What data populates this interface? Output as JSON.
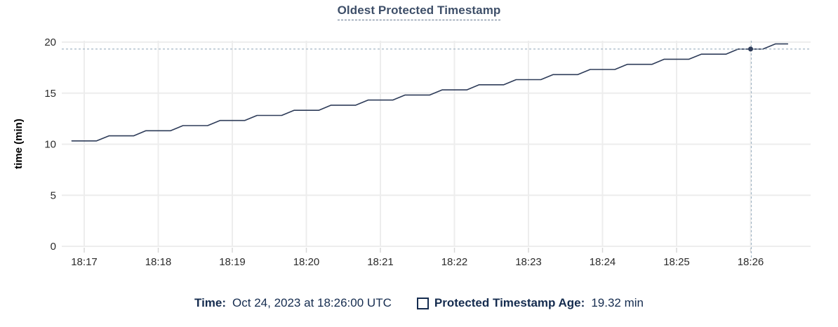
{
  "title": "Oldest Protected Timestamp",
  "footer": {
    "time_label": "Time:",
    "time_value": "Oct 24, 2023 at 18:26:00 UTC",
    "series_label": "Protected Timestamp Age:",
    "series_value": "19.32 min"
  },
  "colors": {
    "line": "#2e3c59",
    "dot": "#2e3c59",
    "grid": "#ededed",
    "tick_mark": "#d8d8d8",
    "crosshair": "#a4b7c6",
    "axis_text": "#2b2b2b",
    "y_axis_title_text": "#000000",
    "title_text": "#3e4f69",
    "footer_text": "#152c4f"
  },
  "chart_data": {
    "type": "line",
    "title": "Oldest Protected Timestamp",
    "xlabel": "",
    "ylabel": "time (min)",
    "ylim": [
      0,
      20
    ],
    "y_ticks": [
      0,
      5,
      10,
      15,
      20
    ],
    "x_ticks": [
      {
        "t": 0,
        "label": "18:17"
      },
      {
        "t": 60,
        "label": "18:18"
      },
      {
        "t": 120,
        "label": "18:19"
      },
      {
        "t": 180,
        "label": "18:20"
      },
      {
        "t": 240,
        "label": "18:21"
      },
      {
        "t": 300,
        "label": "18:22"
      },
      {
        "t": 360,
        "label": "18:23"
      },
      {
        "t": 420,
        "label": "18:24"
      },
      {
        "t": 480,
        "label": "18:25"
      },
      {
        "t": 540,
        "label": "18:26"
      }
    ],
    "x_unit": "seconds since 18:17:00 UTC",
    "grid": true,
    "legend_position": "bottom",
    "series": [
      {
        "name": "Protected Timestamp Age",
        "x_start_seconds": -10,
        "x_step_seconds": 10,
        "values": [
          10.32,
          10.32,
          10.32,
          10.82,
          10.82,
          10.82,
          11.32,
          11.32,
          11.32,
          11.82,
          11.82,
          11.82,
          12.32,
          12.32,
          12.32,
          12.82,
          12.82,
          12.82,
          13.32,
          13.32,
          13.32,
          13.82,
          13.82,
          13.82,
          14.32,
          14.32,
          14.32,
          14.82,
          14.82,
          14.82,
          15.32,
          15.32,
          15.32,
          15.82,
          15.82,
          15.82,
          16.32,
          16.32,
          16.32,
          16.82,
          16.82,
          16.82,
          17.32,
          17.32,
          17.32,
          17.82,
          17.82,
          17.82,
          18.32,
          18.32,
          18.32,
          18.82,
          18.82,
          18.82,
          19.32,
          19.32,
          19.32,
          19.82,
          19.82
        ]
      }
    ],
    "hover_point": {
      "t": 540,
      "value": 19.32,
      "time_label": "Oct 24, 2023 at 18:26:00 UTC"
    }
  }
}
